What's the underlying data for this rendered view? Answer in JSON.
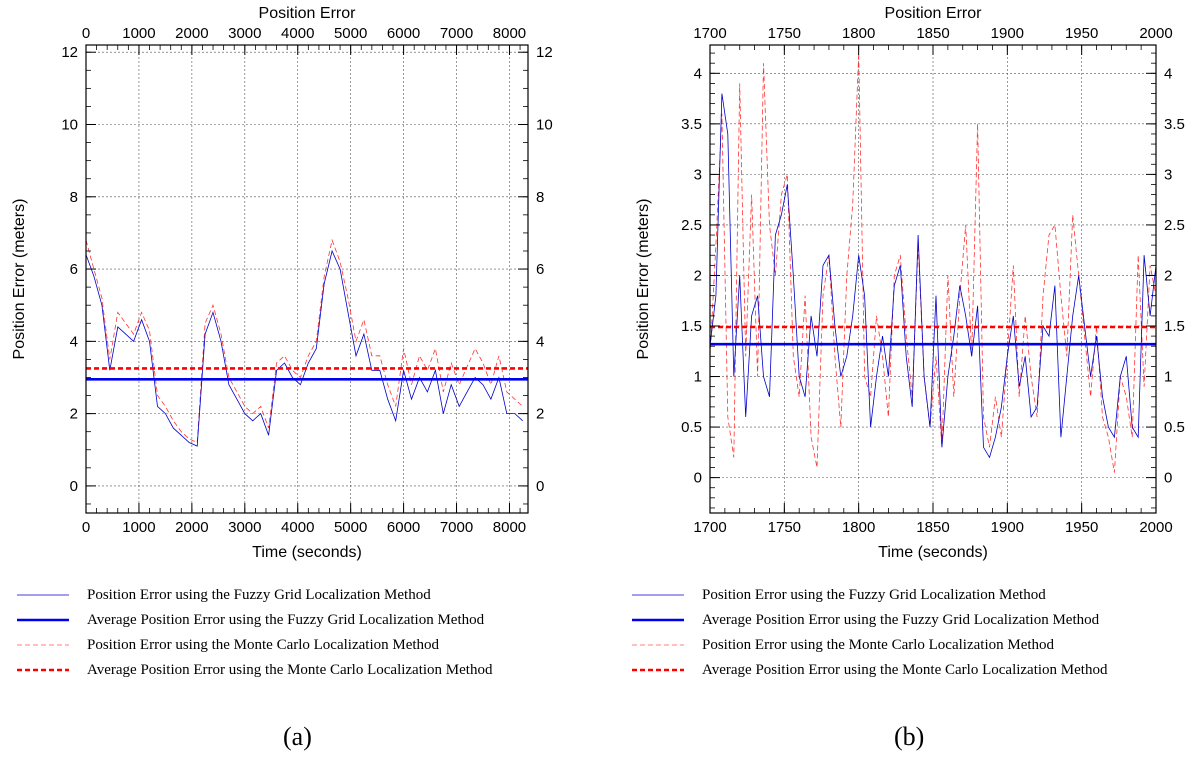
{
  "figure": {
    "panel_labels": [
      "(a)",
      "(b)"
    ],
    "legend_entries": [
      {
        "label": "Position Error using the Fuzzy Grid Localization Method",
        "color": "#0000cc",
        "style": "thin-solid"
      },
      {
        "label": "Average Position Error using the Fuzzy Grid Localization Method",
        "color": "#0000ee",
        "style": "thick-solid"
      },
      {
        "label": "Position Error using the Monte Carlo Localization Method",
        "color": "#ff5555",
        "style": "thin-dashed"
      },
      {
        "label": "Average Position Error using the Monte Carlo Localization Method",
        "color": "#ff0000",
        "style": "thick-dashed"
      }
    ]
  },
  "chart_data": [
    {
      "type": "line",
      "title": "Position Error",
      "xlabel": "Time (seconds)",
      "ylabel": "Position Error (meters)",
      "xlim": [
        0,
        8350
      ],
      "ylim": [
        -0.75,
        12.2
      ],
      "xticks": [
        0,
        1000,
        2000,
        3000,
        4000,
        5000,
        6000,
        7000,
        8000
      ],
      "yticks": [
        0,
        2,
        4,
        6,
        8,
        10,
        12
      ],
      "grid": true,
      "legend_placement": "below",
      "series": [
        {
          "name": "Position Error using the Monte Carlo Localization Method",
          "color": "#ff3333",
          "x": [
            0,
            150,
            300,
            450,
            600,
            750,
            900,
            1050,
            1200,
            1350,
            1500,
            1650,
            1800,
            1950,
            2100,
            2250,
            2400,
            2550,
            2700,
            2850,
            3000,
            3150,
            3300,
            3450,
            3600,
            3750,
            3900,
            4050,
            4200,
            4350,
            4500,
            4650,
            4800,
            4950,
            5100,
            5250,
            5400,
            5550,
            5700,
            5850,
            6000,
            6150,
            6300,
            6450,
            6600,
            6750,
            6900,
            7050,
            7200,
            7350,
            7500,
            7650,
            7800,
            7950,
            8100,
            8250
          ],
          "y": [
            6.8,
            6.0,
            5.2,
            3.5,
            4.8,
            4.5,
            4.2,
            4.8,
            4.3,
            2.5,
            2.2,
            1.8,
            1.5,
            1.3,
            1.2,
            4.5,
            5.0,
            4.2,
            3.0,
            2.6,
            2.2,
            2.0,
            2.2,
            1.6,
            3.4,
            3.6,
            3.2,
            3.0,
            3.6,
            4.0,
            5.8,
            6.8,
            6.2,
            5.2,
            4.0,
            4.6,
            3.6,
            3.6,
            2.8,
            2.2,
            3.8,
            2.8,
            3.6,
            3.2,
            3.8,
            2.6,
            3.4,
            2.8,
            3.3,
            3.8,
            3.4,
            2.8,
            3.6,
            2.6,
            2.4,
            2.2
          ]
        },
        {
          "name": "Position Error using the Fuzzy Grid Localization Method",
          "color": "#0000cc",
          "x": [
            0,
            150,
            300,
            450,
            600,
            750,
            900,
            1050,
            1200,
            1350,
            1500,
            1650,
            1800,
            1950,
            2100,
            2250,
            2400,
            2550,
            2700,
            2850,
            3000,
            3150,
            3300,
            3450,
            3600,
            3750,
            3900,
            4050,
            4200,
            4350,
            4500,
            4650,
            4800,
            4950,
            5100,
            5250,
            5400,
            5550,
            5700,
            5850,
            6000,
            6150,
            6300,
            6450,
            6600,
            6750,
            6900,
            7050,
            7200,
            7350,
            7500,
            7650,
            7800,
            7950,
            8100,
            8250
          ],
          "y": [
            6.4,
            5.8,
            5.0,
            3.2,
            4.4,
            4.2,
            4.0,
            4.6,
            4.0,
            2.2,
            2.0,
            1.6,
            1.4,
            1.2,
            1.1,
            4.2,
            4.8,
            4.0,
            2.8,
            2.4,
            2.0,
            1.8,
            2.0,
            1.4,
            3.2,
            3.4,
            3.0,
            2.8,
            3.4,
            3.8,
            5.6,
            6.5,
            6.0,
            4.8,
            3.6,
            4.2,
            3.2,
            3.2,
            2.4,
            1.8,
            3.2,
            2.4,
            3.0,
            2.6,
            3.2,
            2.0,
            2.8,
            2.2,
            2.6,
            3.0,
            2.8,
            2.4,
            3.0,
            2.0,
            2.0,
            1.8
          ]
        },
        {
          "name": "Average Position Error using the Fuzzy Grid Localization Method",
          "color": "#0000ee",
          "x": [
            0,
            8350
          ],
          "y": [
            2.95,
            2.95
          ]
        },
        {
          "name": "Average Position Error using the Monte Carlo Localization Method",
          "color": "#ff0000",
          "x": [
            0,
            8350
          ],
          "y": [
            3.25,
            3.25
          ]
        }
      ]
    },
    {
      "type": "line",
      "title": "Position Error",
      "xlabel": "Time (seconds)",
      "ylabel": "Position Error (meters)",
      "xlim": [
        1700,
        2000
      ],
      "ylim": [
        -0.35,
        4.28
      ],
      "xticks": [
        1700,
        1750,
        1800,
        1850,
        1900,
        1950,
        2000
      ],
      "yticks": [
        0,
        0.5,
        1,
        1.5,
        2,
        2.5,
        3,
        3.5,
        4
      ],
      "ytick_labels": [
        "0",
        "0.5",
        "1",
        "1.5",
        "2",
        "2.5",
        "3",
        "3.5",
        "4"
      ],
      "grid": true,
      "legend_placement": "below",
      "series": [
        {
          "name": "Position Error using the Monte Carlo Localization Method",
          "color": "#ff3333",
          "x": [
            1700,
            1704,
            1708,
            1712,
            1716,
            1720,
            1724,
            1728,
            1732,
            1736,
            1740,
            1744,
            1748,
            1752,
            1756,
            1760,
            1764,
            1768,
            1772,
            1776,
            1780,
            1784,
            1788,
            1792,
            1796,
            1800,
            1804,
            1808,
            1812,
            1816,
            1820,
            1824,
            1828,
            1832,
            1836,
            1840,
            1844,
            1848,
            1852,
            1856,
            1860,
            1864,
            1868,
            1872,
            1876,
            1880,
            1884,
            1888,
            1892,
            1896,
            1900,
            1904,
            1908,
            1912,
            1916,
            1920,
            1924,
            1928,
            1932,
            1936,
            1940,
            1944,
            1948,
            1952,
            1956,
            1960,
            1964,
            1968,
            1972,
            1976,
            1980,
            1984,
            1988,
            1992,
            1996,
            2000
          ],
          "y": [
            1.2,
            2.3,
            3.6,
            0.6,
            0.2,
            3.9,
            1.2,
            2.8,
            1.0,
            4.1,
            2.5,
            2.0,
            2.8,
            3.0,
            1.2,
            0.8,
            1.8,
            0.4,
            0.1,
            1.8,
            2.2,
            1.2,
            0.5,
            2.0,
            2.7,
            4.2,
            1.0,
            0.8,
            1.6,
            1.2,
            0.6,
            2.0,
            2.2,
            1.4,
            0.8,
            2.3,
            1.0,
            0.5,
            1.2,
            0.3,
            2.0,
            0.8,
            1.8,
            2.5,
            1.2,
            3.5,
            0.6,
            0.3,
            0.8,
            0.4,
            1.2,
            2.1,
            0.8,
            1.6,
            1.0,
            0.6,
            1.8,
            2.4,
            2.5,
            1.8,
            1.2,
            2.6,
            2.0,
            1.4,
            0.8,
            1.5,
            0.6,
            0.4,
            0.05,
            1.0,
            0.8,
            0.4,
            2.2,
            0.9,
            2.1,
            1.8
          ]
        },
        {
          "name": "Position Error using the Fuzzy Grid Localization Method",
          "color": "#0000cc",
          "x": [
            1700,
            1704,
            1708,
            1712,
            1716,
            1720,
            1724,
            1728,
            1732,
            1736,
            1740,
            1744,
            1748,
            1752,
            1756,
            1760,
            1764,
            1768,
            1772,
            1776,
            1780,
            1784,
            1788,
            1792,
            1796,
            1800,
            1804,
            1808,
            1812,
            1816,
            1820,
            1824,
            1828,
            1832,
            1836,
            1840,
            1844,
            1848,
            1852,
            1856,
            1860,
            1864,
            1868,
            1872,
            1876,
            1880,
            1884,
            1888,
            1892,
            1896,
            1900,
            1904,
            1908,
            1912,
            1916,
            1920,
            1924,
            1928,
            1932,
            1936,
            1940,
            1944,
            1948,
            1952,
            1956,
            1960,
            1964,
            1968,
            1972,
            1976,
            1980,
            1984,
            1988,
            1992,
            1996,
            2000
          ],
          "y": [
            1.3,
            1.8,
            3.8,
            3.4,
            1.0,
            2.0,
            0.6,
            1.6,
            1.8,
            1.0,
            0.8,
            2.4,
            2.6,
            2.9,
            2.0,
            1.0,
            0.8,
            1.6,
            1.2,
            2.1,
            2.2,
            1.5,
            1.0,
            1.2,
            1.6,
            2.2,
            1.8,
            0.5,
            1.0,
            1.4,
            1.0,
            1.9,
            2.1,
            1.2,
            0.7,
            2.4,
            1.0,
            0.5,
            1.8,
            0.3,
            1.0,
            1.4,
            1.9,
            1.6,
            1.2,
            1.7,
            0.3,
            0.2,
            0.4,
            0.7,
            1.2,
            1.6,
            0.9,
            1.2,
            0.6,
            0.7,
            1.5,
            1.4,
            1.9,
            0.4,
            1.0,
            1.6,
            2.0,
            1.5,
            1.0,
            1.4,
            0.8,
            0.5,
            0.4,
            1.0,
            1.2,
            0.5,
            0.4,
            2.2,
            1.6,
            2.1
          ]
        },
        {
          "name": "Average Position Error using the Fuzzy Grid Localization Method",
          "color": "#0000ee",
          "x": [
            1700,
            2000
          ],
          "y": [
            1.32,
            1.32
          ]
        },
        {
          "name": "Average Position Error using the Monte Carlo Localization Method",
          "color": "#ff0000",
          "x": [
            1700,
            2000
          ],
          "y": [
            1.49,
            1.49
          ]
        }
      ]
    }
  ]
}
